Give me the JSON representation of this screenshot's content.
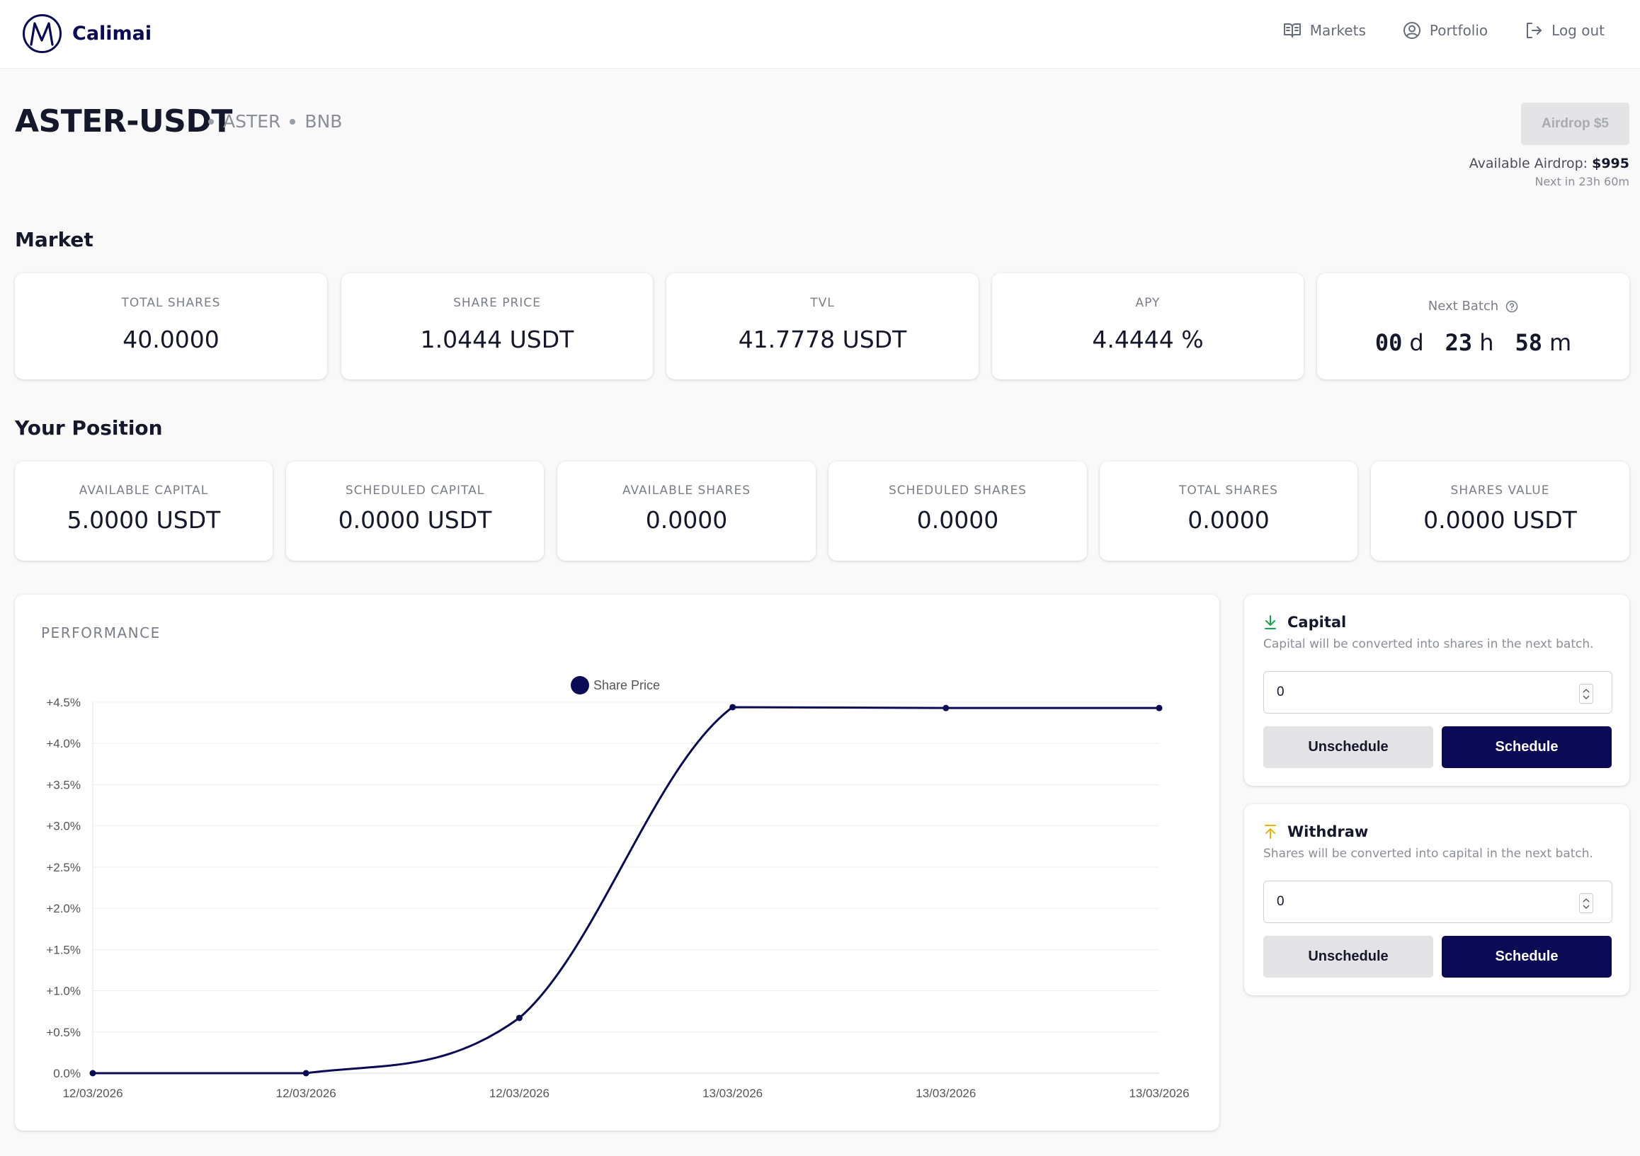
{
  "brand": {
    "name": "Calimai"
  },
  "nav": {
    "items": [
      {
        "label": "Markets",
        "icon": "book-open-icon"
      },
      {
        "label": "Portfolio",
        "icon": "user-circle-icon"
      },
      {
        "label": "Log out",
        "icon": "logout-icon"
      }
    ]
  },
  "header": {
    "pair": "ASTER-USDT",
    "base": "ASTER",
    "chain": "BNB",
    "airdrop_button": "Airdrop $5",
    "available_airdrop_label": "Available Airdrop:",
    "available_airdrop_value": "$995",
    "next_airdrop": "Next in 23h 60m"
  },
  "market": {
    "title": "Market",
    "cards": [
      {
        "label": "TOTAL SHARES",
        "value": "40.0000"
      },
      {
        "label": "SHARE PRICE",
        "value": "1.0444 USDT"
      },
      {
        "label": "TVL",
        "value": "41.7778 USDT"
      },
      {
        "label": "APY",
        "value": "4.4444 %"
      }
    ],
    "next_batch": {
      "label": "Next Batch",
      "days": "00",
      "days_unit": "d",
      "hours": "23",
      "hours_unit": "h",
      "minutes": "58",
      "minutes_unit": "m"
    }
  },
  "position": {
    "title": "Your Position",
    "cards": [
      {
        "label": "AVAILABLE CAPITAL",
        "value": "5.0000 USDT"
      },
      {
        "label": "SCHEDULED CAPITAL",
        "value": "0.0000 USDT"
      },
      {
        "label": "AVAILABLE SHARES",
        "value": "0.0000"
      },
      {
        "label": "SCHEDULED SHARES",
        "value": "0.0000"
      },
      {
        "label": "TOTAL SHARES",
        "value": "0.0000"
      },
      {
        "label": "SHARES VALUE",
        "value": "0.0000 USDT"
      }
    ]
  },
  "performance": {
    "title": "PERFORMANCE"
  },
  "chart_data": {
    "type": "line",
    "title": "",
    "xlabel": "",
    "ylabel": "",
    "x": [
      "12/03/2026",
      "12/03/2026",
      "12/03/2026",
      "13/03/2026",
      "13/03/2026",
      "13/03/2026"
    ],
    "series": [
      {
        "name": "Share Price",
        "values": [
          0.0,
          0.0,
          0.67,
          4.44,
          4.43,
          4.43
        ]
      }
    ],
    "ylim": [
      0,
      4.5
    ],
    "y_ticks": [
      "0.0%",
      "+0.5%",
      "+1.0%",
      "+1.5%",
      "+2.0%",
      "+2.5%",
      "+3.0%",
      "+3.5%",
      "+4.0%",
      "+4.5%"
    ],
    "line_color": "#0a0a55",
    "grid": true,
    "legend_position": "top"
  },
  "capital": {
    "title": "Capital",
    "description": "Capital will be converted into shares in the next batch.",
    "value": "0",
    "unschedule_label": "Unschedule",
    "schedule_label": "Schedule",
    "icon": "download-icon",
    "icon_color": "#16a34a"
  },
  "withdraw": {
    "title": "Withdraw",
    "description": "Shares will be converted into capital in the next batch.",
    "value": "0",
    "unschedule_label": "Unschedule",
    "schedule_label": "Schedule",
    "icon": "upload-icon",
    "icon_color": "#eab308"
  },
  "colors": {
    "primary": "#0a0a55",
    "text": "#15172a",
    "muted": "#7a7e88"
  }
}
